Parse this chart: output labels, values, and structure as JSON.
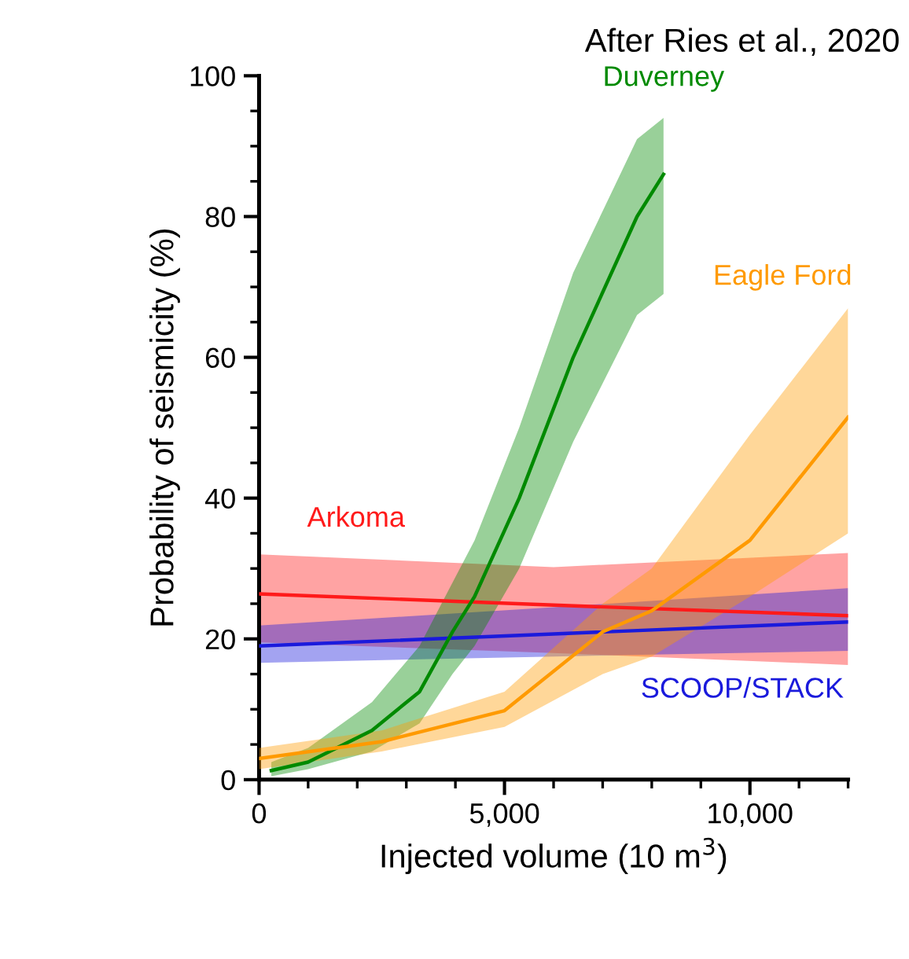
{
  "chart_data": {
    "type": "line",
    "title": "After Ries et al., 2020",
    "xlabel": "Injected volume (10 m$^{3}$)",
    "ylabel": "Probability of seismicity (%)",
    "xlim": [
      0,
      12000
    ],
    "ylim": [
      0,
      100
    ],
    "xticks": [
      0,
      {
        "value": 1000,
        "label": null
      },
      {
        "value": 2000,
        "label": null
      },
      {
        "value": 3000,
        "label": null
      },
      {
        "value": 4000,
        "label": null
      },
      {
        "value": 5000,
        "label": "5,000"
      },
      {
        "value": 6000,
        "label": null
      },
      {
        "value": 7000,
        "label": null
      },
      {
        "value": 8000,
        "label": null
      },
      {
        "value": 9000,
        "label": null
      },
      {
        "value": 10000,
        "label": "10,000"
      },
      {
        "value": 11000,
        "label": null
      },
      {
        "value": 12000,
        "label": null
      }
    ],
    "yticks": [
      0,
      {
        "value": 5,
        "label": null
      },
      {
        "value": 10,
        "label": null
      },
      {
        "value": 15,
        "label": null
      },
      20,
      {
        "value": 25,
        "label": null
      },
      {
        "value": 30,
        "label": null
      },
      {
        "value": 35,
        "label": null
      },
      40,
      {
        "value": 45,
        "label": null
      },
      {
        "value": 50,
        "label": null
      },
      {
        "value": 55,
        "label": null
      },
      60,
      {
        "value": 65,
        "label": null
      },
      {
        "value": 70,
        "label": null
      },
      {
        "value": 75,
        "label": null
      },
      80,
      {
        "value": 85,
        "label": null
      },
      {
        "value": 90,
        "label": null
      },
      {
        "value": 95,
        "label": null
      },
      100
    ],
    "grid": false,
    "legend": false,
    "marker": "none",
    "line_style": "solid",
    "series": [
      {
        "name": "Arkoma",
        "color": "#ff1a1a",
        "x": [
          0,
          6000,
          12000
        ],
        "values": [
          26.4,
          24.8,
          23.3
        ],
        "lower": [
          19.5,
          18,
          16.3
        ],
        "upper": [
          32,
          30.2,
          32.2
        ]
      },
      {
        "name": "SCOOP/STACK",
        "color": "#1a1adc",
        "x": [
          0,
          6000,
          12000
        ],
        "values": [
          19,
          20.7,
          22.4
        ],
        "lower": [
          16.6,
          17.5,
          18.3
        ],
        "upper": [
          21.9,
          24.5,
          27.2
        ]
      },
      {
        "name": "Duverney",
        "color": "#008a00",
        "x": [
          250,
          1000,
          2300,
          3270,
          3940,
          4390,
          5300,
          6400,
          7700,
          8240
        ],
        "values": [
          1.3,
          2.5,
          7,
          12.5,
          21,
          26,
          40,
          60,
          80,
          86
        ],
        "lower": [
          0.5,
          1.5,
          4,
          8,
          15,
          19,
          30,
          48,
          66,
          69
        ],
        "upper": [
          2.5,
          4.5,
          11,
          19,
          28,
          34,
          50,
          72,
          91,
          94
        ]
      },
      {
        "name": "Eagle Ford",
        "color": "#ff9a00",
        "x": [
          0,
          2500,
          5000,
          7000,
          8000,
          10000,
          12000
        ],
        "values": [
          3,
          5.4,
          9.8,
          21,
          24,
          34,
          51.5
        ],
        "lower": [
          1.5,
          4,
          7.5,
          15,
          17.5,
          26,
          35
        ],
        "upper": [
          4.5,
          7,
          12.5,
          25,
          30,
          49,
          67
        ]
      }
    ]
  }
}
